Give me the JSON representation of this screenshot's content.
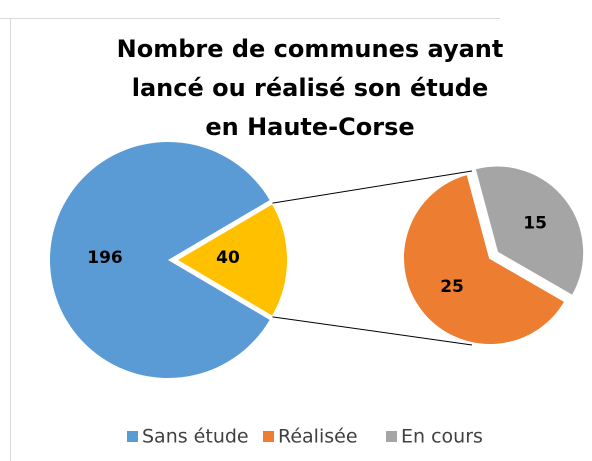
{
  "chart_data": {
    "type": "pie-of-pie",
    "title": "Nombre de communes ayant lancé ou réalisé son étude en Haute-Corse",
    "categories": [
      "Sans étude",
      "Réalisée",
      "En cours"
    ],
    "values": [
      196,
      25,
      15
    ],
    "colors": [
      "#5b9bd5",
      "#ed7d31",
      "#a5a5a5"
    ],
    "other": {
      "value": 40,
      "color": "#ffc000"
    },
    "legend": "bottom"
  }
}
